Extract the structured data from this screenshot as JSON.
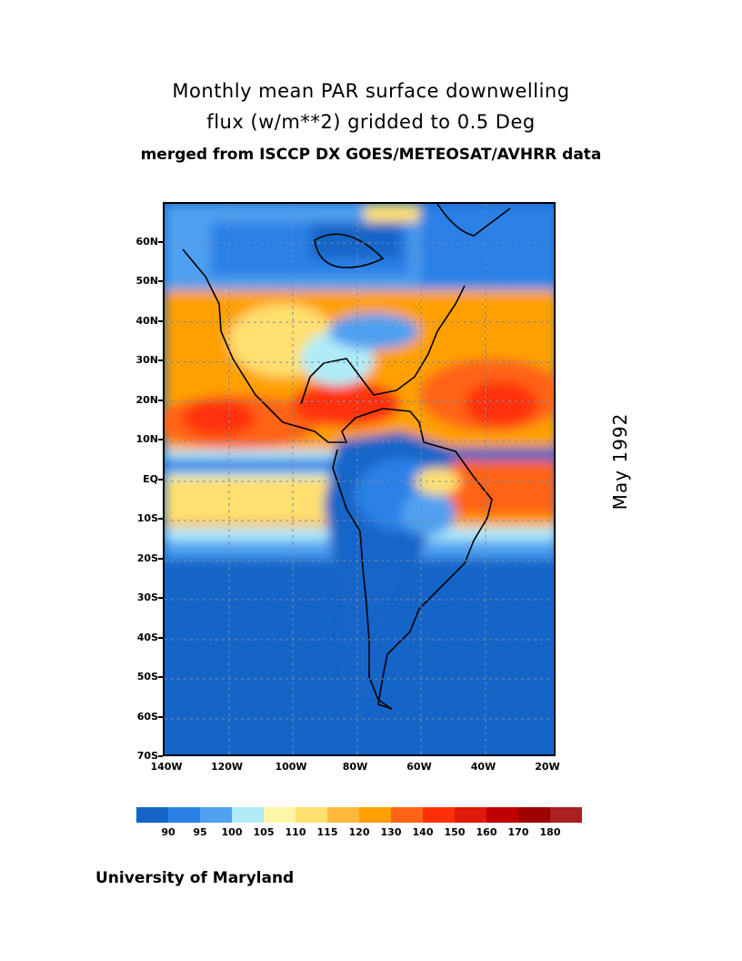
{
  "title": {
    "line1": "Monthly mean PAR surface downwelling",
    "line2": "flux (w/m**2) gridded to 0.5 Deg",
    "line3": "merged from ISCCP DX GOES/METEOSAT/AVHRR data"
  },
  "date_label": "May 1992",
  "credit": "University of Maryland",
  "axes": {
    "lat_labels": [
      "60N",
      "50N",
      "40N",
      "30N",
      "20N",
      "10N",
      "EQ",
      "10S",
      "20S",
      "30S",
      "40S",
      "50S",
      "60S",
      "70S"
    ],
    "lat_values": [
      60,
      50,
      40,
      30,
      20,
      10,
      0,
      -10,
      -20,
      -30,
      -40,
      -50,
      -60,
      -70
    ],
    "lon_labels": [
      "140W",
      "120W",
      "100W",
      "80W",
      "60W",
      "40W",
      "20W"
    ],
    "lon_values": [
      -140,
      -120,
      -100,
      -80,
      -60,
      -40,
      -20
    ],
    "lat_range": [
      -70,
      70
    ],
    "lon_range": [
      -140,
      -17.5
    ]
  },
  "colorbar": {
    "labels": [
      "90",
      "95",
      "100",
      "105",
      "110",
      "115",
      "120",
      "130",
      "140",
      "150",
      "160",
      "170",
      "180"
    ],
    "colors": [
      "#1565c8",
      "#2a80e6",
      "#50a0f0",
      "#b0ecf8",
      "#fff5a8",
      "#ffe070",
      "#ffb83c",
      "#ffa000",
      "#ff6414",
      "#ff3008",
      "#e01808",
      "#c00000",
      "#a00000",
      "#a82020"
    ]
  }
}
